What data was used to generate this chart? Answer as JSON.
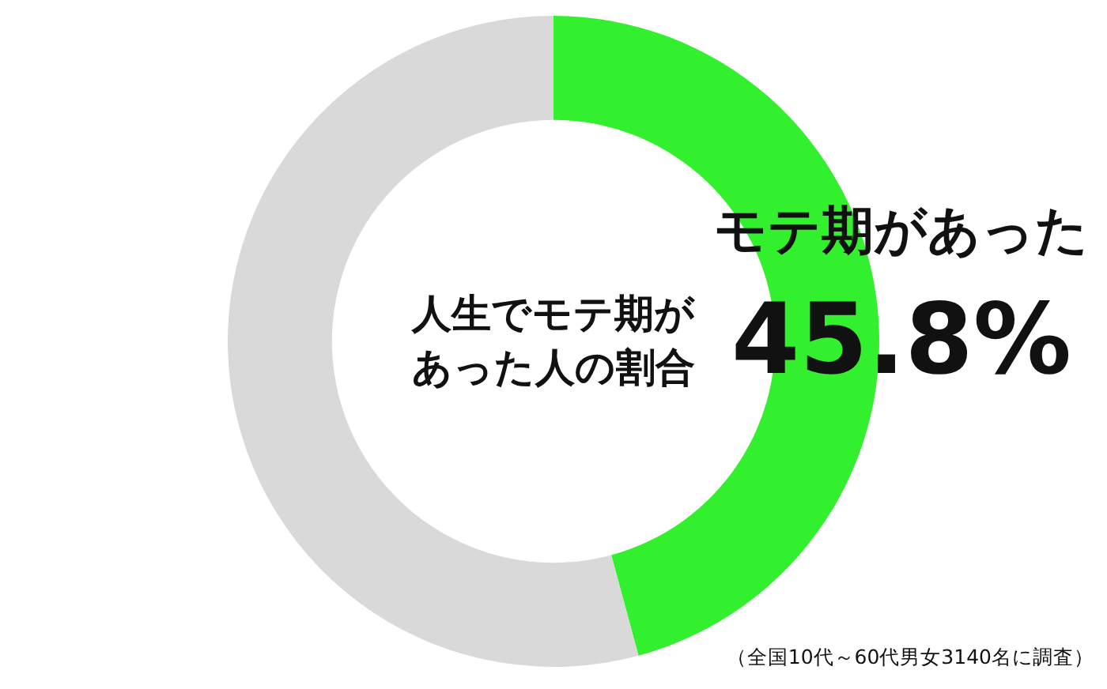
{
  "chart_data": {
    "type": "donut",
    "title": "人生でモテ期があった人の割合",
    "categories": [
      "モテ期があった",
      null
    ],
    "values": [
      45.8,
      54.2
    ],
    "colors": [
      "#33f02e",
      "#d9d9d9"
    ],
    "value_labels": [
      "45.8%",
      null
    ],
    "annotations": [
      "（全国10代～60代男女3140名に調査）"
    ]
  }
}
